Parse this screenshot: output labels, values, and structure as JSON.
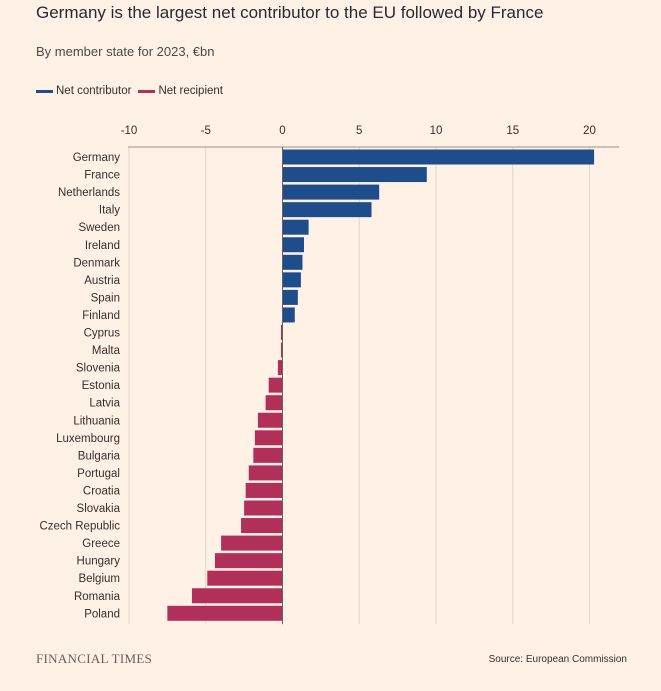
{
  "header": {
    "title": "Germany is the largest net contributor to the EU followed by France",
    "subtitle": "By member state for 2023, €bn"
  },
  "legend": {
    "items": [
      {
        "label": "Net contributor",
        "color": "#1e4d8c"
      },
      {
        "label": "Net recipient",
        "color": "#b0305a"
      }
    ]
  },
  "footer": {
    "brand": "FINANCIAL TIMES",
    "source": "Source: European Commission"
  },
  "chart_data": {
    "type": "bar",
    "orientation": "horizontal",
    "title": "Germany is the largest net contributor to the EU followed by France",
    "subtitle": "By member state for 2023, €bn",
    "xlim": [
      -10,
      22
    ],
    "xticks": [
      -10,
      -5,
      0,
      5,
      10,
      15,
      20
    ],
    "tick_labels": [
      "-10",
      "-5",
      "0",
      "5",
      "10",
      "15",
      "20"
    ],
    "grid": "vertical",
    "legend_position": "top-left",
    "colors": {
      "positive": "#1e4d8c",
      "negative": "#b0305a"
    },
    "categories": [
      "Germany",
      "France",
      "Netherlands",
      "Italy",
      "Sweden",
      "Ireland",
      "Denmark",
      "Austria",
      "Spain",
      "Finland",
      "Cyprus",
      "Malta",
      "Slovenia",
      "Estonia",
      "Latvia",
      "Lithuania",
      "Luxembourg",
      "Bulgaria",
      "Portugal",
      "Croatia",
      "Slovakia",
      "Czech Republic",
      "Greece",
      "Hungary",
      "Belgium",
      "Romania",
      "Poland"
    ],
    "values": [
      20.3,
      9.4,
      6.3,
      5.8,
      1.7,
      1.4,
      1.3,
      1.2,
      1.0,
      0.8,
      -0.1,
      -0.1,
      -0.3,
      -0.9,
      -1.1,
      -1.6,
      -1.8,
      -1.9,
      -2.2,
      -2.4,
      -2.5,
      -2.7,
      -4.0,
      -4.4,
      -4.9,
      -5.9,
      -7.5
    ]
  }
}
